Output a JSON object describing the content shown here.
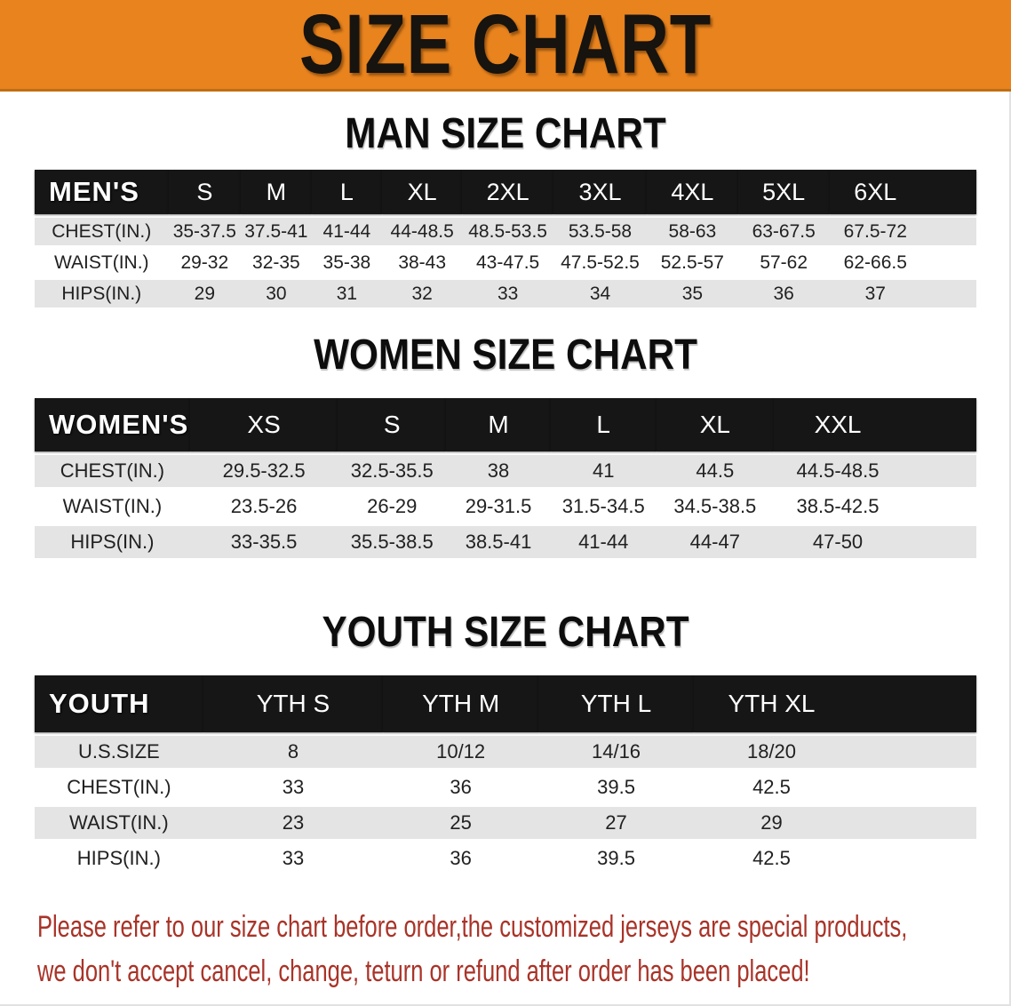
{
  "banner": {
    "title": "SIZE CHART"
  },
  "colors": {
    "banner_bg": "#E8831E",
    "header_bar_bg": "#161616",
    "header_bar_text": "#FFFFFF",
    "shaded_row_bg": "#E4E4E4",
    "disclaimer_text": "#A93328"
  },
  "sections": [
    {
      "id": "men",
      "heading": "MAN SIZE CHART",
      "corner_label": "MEN'S",
      "columns": [
        "S",
        "M",
        "L",
        "XL",
        "2XL",
        "3XL",
        "4XL",
        "5XL",
        "6XL"
      ],
      "rows": [
        {
          "label": "CHEST(IN.)",
          "values": [
            "35-37.5",
            "37.5-41",
            "41-44",
            "44-48.5",
            "48.5-53.5",
            "53.5-58",
            "58-63",
            "63-67.5",
            "67.5-72"
          ]
        },
        {
          "label": "WAIST(IN.)",
          "values": [
            "29-32",
            "32-35",
            "35-38",
            "38-43",
            "43-47.5",
            "47.5-52.5",
            "52.5-57",
            "57-62",
            "62-66.5"
          ]
        },
        {
          "label": "HIPS(IN.)",
          "values": [
            "29",
            "30",
            "31",
            "32",
            "33",
            "34",
            "35",
            "36",
            "37"
          ]
        }
      ]
    },
    {
      "id": "women",
      "heading": "WOMEN SIZE CHART",
      "corner_label": "WOMEN'S",
      "columns": [
        "XS",
        "S",
        "M",
        "L",
        "XL",
        "XXL"
      ],
      "rows": [
        {
          "label": "CHEST(IN.)",
          "values": [
            "29.5-32.5",
            "32.5-35.5",
            "38",
            "41",
            "44.5",
            "44.5-48.5"
          ]
        },
        {
          "label": "WAIST(IN.)",
          "values": [
            "23.5-26",
            "26-29",
            "29-31.5",
            "31.5-34.5",
            "34.5-38.5",
            "38.5-42.5"
          ]
        },
        {
          "label": "HIPS(IN.)",
          "values": [
            "33-35.5",
            "35.5-38.5",
            "38.5-41",
            "41-44",
            "44-47",
            "47-50"
          ]
        }
      ]
    },
    {
      "id": "youth",
      "heading": "YOUTH SIZE CHART",
      "corner_label": "YOUTH",
      "columns": [
        "YTH S",
        "YTH M",
        "YTH L",
        "YTH XL"
      ],
      "rows": [
        {
          "label": "U.S.SIZE",
          "values": [
            "8",
            "10/12",
            "14/16",
            "18/20"
          ]
        },
        {
          "label": "CHEST(IN.)",
          "values": [
            "33",
            "36",
            "39.5",
            "42.5"
          ]
        },
        {
          "label": "WAIST(IN.)",
          "values": [
            "23",
            "25",
            "27",
            "29"
          ]
        },
        {
          "label": "HIPS(IN.)",
          "values": [
            "33",
            "36",
            "39.5",
            "42.5"
          ]
        }
      ]
    }
  ],
  "disclaimer": {
    "lines": [
      "Please refer to our size chart before order,the customized jerseys are special products,",
      "we don't accept cancel, change, teturn or refund after order has been placed!"
    ]
  }
}
